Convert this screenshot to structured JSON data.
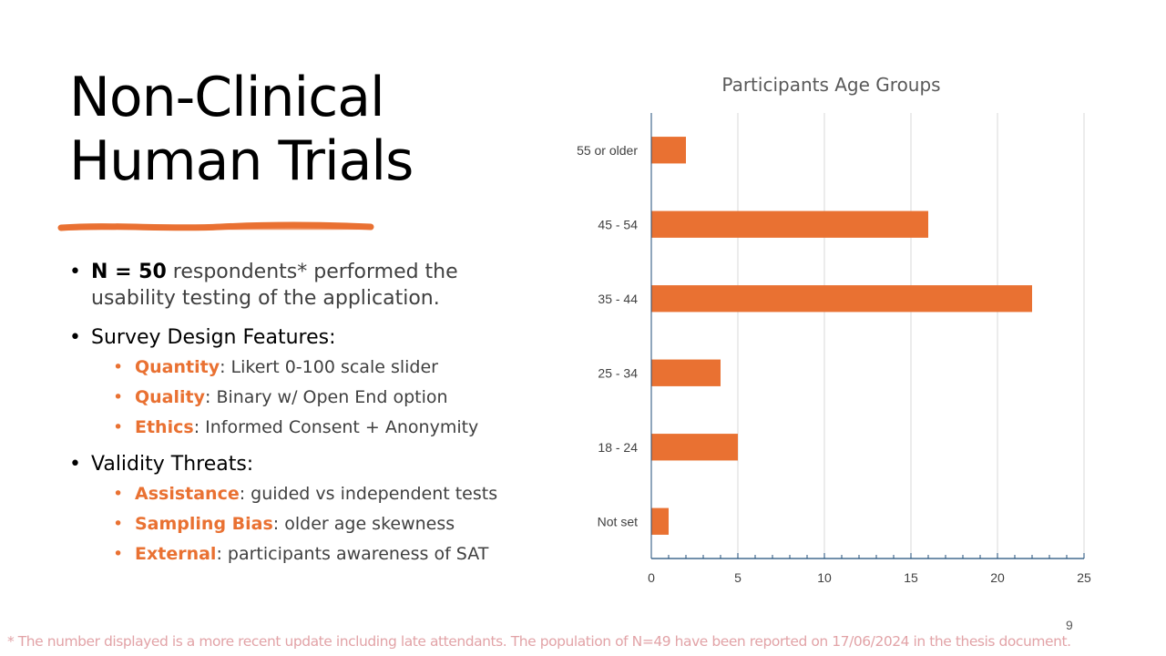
{
  "slide": {
    "title_line1": "Non-Clinical",
    "title_line2": "Human Trials",
    "page_number": "9",
    "footnote": "* The number displayed is a more recent update including late attendants. The population of N=49 have been reported on 17/06/2024 in the thesis document."
  },
  "bullets": {
    "n_label": "N = 50",
    "n_rest": " respondents* performed the usability testing of the application.",
    "survey_label": "Survey Design Features:",
    "survey_items": [
      {
        "key": "Quantity",
        "text": ": Likert 0-100 scale slider"
      },
      {
        "key": "Quality",
        "text": ": Binary w/ Open End option"
      },
      {
        "key": "Ethics",
        "text": ": Informed Consent + Anonymity"
      }
    ],
    "threats_label": "Validity Threats:",
    "threat_items": [
      {
        "key": "Assistance",
        "text": ": guided vs independent tests"
      },
      {
        "key": "Sampling Bias",
        "text": ": older age skewness"
      },
      {
        "key": "External",
        "text": ": participants awareness of SAT"
      }
    ]
  },
  "colors": {
    "accent": "#e97132",
    "axis": "#1f4e79",
    "grid": "#d9d9d9",
    "footnote": "#e2a3a7"
  },
  "chart_data": {
    "type": "bar",
    "orientation": "horizontal",
    "title": "Participants Age Groups",
    "categories": [
      "55 or older",
      "45 - 54",
      "35 - 44",
      "25 - 34",
      "18 - 24",
      "Not set"
    ],
    "values": [
      2,
      16,
      22,
      4,
      5,
      1
    ],
    "xlim": [
      0,
      25
    ],
    "xticks": [
      0,
      5,
      10,
      15,
      20,
      25
    ],
    "grid": true,
    "legend": "none",
    "bar_color": "#e97132"
  }
}
